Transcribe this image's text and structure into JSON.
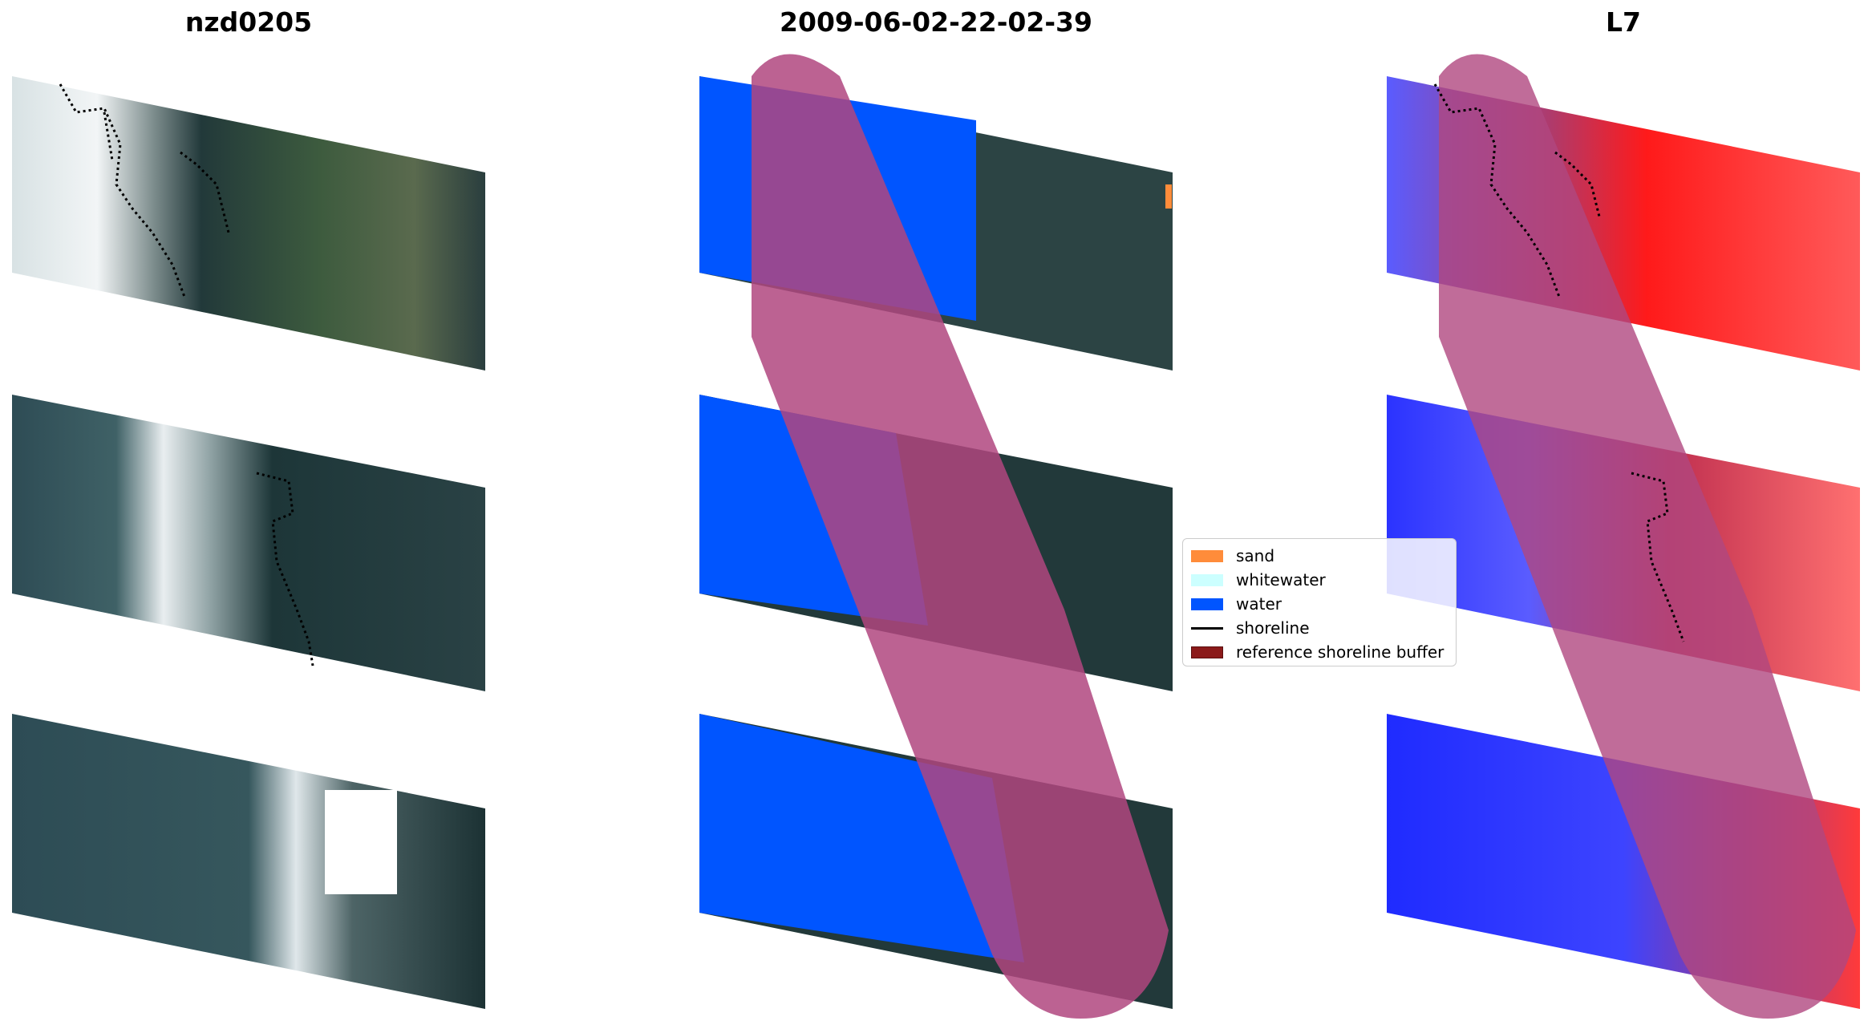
{
  "panels": [
    {
      "title": "nzd0205"
    },
    {
      "title": "2009-06-02-22-02-39"
    },
    {
      "title": "L7"
    }
  ],
  "legend": {
    "items": [
      {
        "label": "sand",
        "color": "#ff8c3a",
        "kind": "patch"
      },
      {
        "label": "whitewater",
        "color": "#ccffff",
        "kind": "patch"
      },
      {
        "label": "water",
        "color": "#0055ff",
        "kind": "patch"
      },
      {
        "label": "shoreline",
        "color": "#000000",
        "kind": "line"
      },
      {
        "label": "reference shoreline buffer",
        "color": "#8b1a1a",
        "kind": "patch"
      }
    ]
  },
  "colors": {
    "land_dark": "#1f3a3a",
    "land_green": "#3a5a3a",
    "water_rgb": "#2c4a52",
    "surf_white": "#e8eef0",
    "class_water": "#0055ff",
    "buffer_overlay": "#b0477f",
    "mndwi_water": "#2233ff",
    "mndwi_land": "#ff2020"
  }
}
